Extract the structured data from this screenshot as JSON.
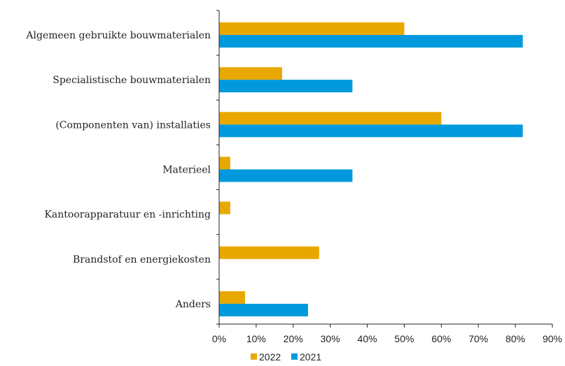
{
  "chart_data": {
    "type": "bar",
    "orientation": "horizontal",
    "categories": [
      "Algemeen gebruikte bouwmaterialen",
      "Specialistische bouwmaterialen",
      "(Componenten van) installaties",
      "Materieel",
      "Kantoorapparatuur en -inrichting",
      "Brandstof en energiekosten",
      "Anders"
    ],
    "series": [
      {
        "name": "2022",
        "color": "#E8A800",
        "values": [
          50,
          17,
          60,
          3,
          3,
          27,
          7
        ]
      },
      {
        "name": "2021",
        "color": "#0099DD",
        "values": [
          82,
          36,
          82,
          36,
          0,
          0,
          24
        ]
      }
    ],
    "xlim": [
      0,
      90
    ],
    "xticks": [
      "0%",
      "10%",
      "20%",
      "30%",
      "40%",
      "50%",
      "60%",
      "70%",
      "80%",
      "90%"
    ],
    "xlabel": "",
    "ylabel": "",
    "title": "",
    "grid": false,
    "legend": {
      "position": "bottom",
      "entries": [
        "2022",
        "2021"
      ]
    }
  }
}
